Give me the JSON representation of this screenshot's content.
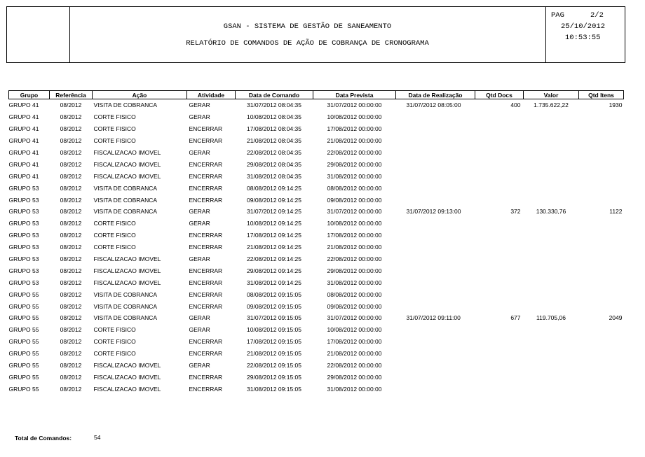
{
  "header": {
    "system_title": "GSAN - SISTEMA DE GESTÃO DE SANEAMENTO",
    "report_title": "RELATÓRIO DE COMANDOS DE AÇÃO DE COBRANÇA DE CRONOGRAMA",
    "page_label": "PAG",
    "page_value": "2/2",
    "date": "25/10/2012",
    "time": "10:53:55"
  },
  "table": {
    "columns": [
      "Grupo",
      "Referência",
      "Ação",
      "Atividade",
      "Data de Comando",
      "Data Prevista",
      "Data de Realização",
      "Qtd Docs",
      "Valor",
      "Qtd Itens"
    ],
    "rows": [
      [
        "GRUPO 41",
        "08/2012",
        "VISITA DE COBRANCA",
        "GERAR",
        "31/07/2012 08:04:35",
        "31/07/2012 00:00:00",
        "31/07/2012 08:05:00",
        "400",
        "1.735.622,22",
        "1930"
      ],
      [
        "GRUPO 41",
        "08/2012",
        "CORTE FISICO",
        "GERAR",
        "10/08/2012 08:04:35",
        "10/08/2012 00:00:00",
        "",
        "",
        "",
        ""
      ],
      [
        "GRUPO 41",
        "08/2012",
        "CORTE FISICO",
        "ENCERRAR",
        "17/08/2012 08:04:35",
        "17/08/2012 00:00:00",
        "",
        "",
        "",
        ""
      ],
      [
        "GRUPO 41",
        "08/2012",
        "CORTE FISICO",
        "ENCERRAR",
        "21/08/2012 08:04:35",
        "21/08/2012 00:00:00",
        "",
        "",
        "",
        ""
      ],
      [
        "GRUPO 41",
        "08/2012",
        "FISCALIZACAO IMOVEL",
        "GERAR",
        "22/08/2012 08:04:35",
        "22/08/2012 00:00:00",
        "",
        "",
        "",
        ""
      ],
      [
        "GRUPO 41",
        "08/2012",
        "FISCALIZACAO IMOVEL",
        "ENCERRAR",
        "29/08/2012 08:04:35",
        "29/08/2012 00:00:00",
        "",
        "",
        "",
        ""
      ],
      [
        "GRUPO 41",
        "08/2012",
        "FISCALIZACAO IMOVEL",
        "ENCERRAR",
        "31/08/2012 08:04:35",
        "31/08/2012 00:00:00",
        "",
        "",
        "",
        ""
      ],
      [
        "GRUPO 53",
        "08/2012",
        "VISITA DE COBRANCA",
        "ENCERRAR",
        "08/08/2012 09:14:25",
        "08/08/2012 00:00:00",
        "",
        "",
        "",
        ""
      ],
      [
        "GRUPO 53",
        "08/2012",
        "VISITA DE COBRANCA",
        "ENCERRAR",
        "09/08/2012 09:14:25",
        "09/08/2012 00:00:00",
        "",
        "",
        "",
        ""
      ],
      [
        "GRUPO 53",
        "08/2012",
        "VISITA DE COBRANCA",
        "GERAR",
        "31/07/2012 09:14:25",
        "31/07/2012 00:00:00",
        "31/07/2012 09:13:00",
        "372",
        "130.330,76",
        "1122"
      ],
      [
        "GRUPO 53",
        "08/2012",
        "CORTE FISICO",
        "GERAR",
        "10/08/2012 09:14:25",
        "10/08/2012 00:00:00",
        "",
        "",
        "",
        ""
      ],
      [
        "GRUPO 53",
        "08/2012",
        "CORTE FISICO",
        "ENCERRAR",
        "17/08/2012 09:14:25",
        "17/08/2012 00:00:00",
        "",
        "",
        "",
        ""
      ],
      [
        "GRUPO 53",
        "08/2012",
        "CORTE FISICO",
        "ENCERRAR",
        "21/08/2012 09:14:25",
        "21/08/2012 00:00:00",
        "",
        "",
        "",
        ""
      ],
      [
        "GRUPO 53",
        "08/2012",
        "FISCALIZACAO IMOVEL",
        "GERAR",
        "22/08/2012 09:14:25",
        "22/08/2012 00:00:00",
        "",
        "",
        "",
        ""
      ],
      [
        "GRUPO 53",
        "08/2012",
        "FISCALIZACAO IMOVEL",
        "ENCERRAR",
        "29/08/2012 09:14:25",
        "29/08/2012 00:00:00",
        "",
        "",
        "",
        ""
      ],
      [
        "GRUPO 53",
        "08/2012",
        "FISCALIZACAO IMOVEL",
        "ENCERRAR",
        "31/08/2012 09:14:25",
        "31/08/2012 00:00:00",
        "",
        "",
        "",
        ""
      ],
      [
        "GRUPO 55",
        "08/2012",
        "VISITA DE COBRANCA",
        "ENCERRAR",
        "08/08/2012 09:15:05",
        "08/08/2012 00:00:00",
        "",
        "",
        "",
        ""
      ],
      [
        "GRUPO 55",
        "08/2012",
        "VISITA DE COBRANCA",
        "ENCERRAR",
        "09/08/2012 09:15:05",
        "09/08/2012 00:00:00",
        "",
        "",
        "",
        ""
      ],
      [
        "GRUPO 55",
        "08/2012",
        "VISITA DE COBRANCA",
        "GERAR",
        "31/07/2012 09:15:05",
        "31/07/2012 00:00:00",
        "31/07/2012 09:11:00",
        "677",
        "119.705,06",
        "2049"
      ],
      [
        "GRUPO 55",
        "08/2012",
        "CORTE FISICO",
        "GERAR",
        "10/08/2012 09:15:05",
        "10/08/2012 00:00:00",
        "",
        "",
        "",
        ""
      ],
      [
        "GRUPO 55",
        "08/2012",
        "CORTE FISICO",
        "ENCERRAR",
        "17/08/2012 09:15:05",
        "17/08/2012 00:00:00",
        "",
        "",
        "",
        ""
      ],
      [
        "GRUPO 55",
        "08/2012",
        "CORTE FISICO",
        "ENCERRAR",
        "21/08/2012 09:15:05",
        "21/08/2012 00:00:00",
        "",
        "",
        "",
        ""
      ],
      [
        "GRUPO 55",
        "08/2012",
        "FISCALIZACAO IMOVEL",
        "GERAR",
        "22/08/2012 09:15:05",
        "22/08/2012 00:00:00",
        "",
        "",
        "",
        ""
      ],
      [
        "GRUPO 55",
        "08/2012",
        "FISCALIZACAO IMOVEL",
        "ENCERRAR",
        "29/08/2012 09:15:05",
        "29/08/2012 00:00:00",
        "",
        "",
        "",
        ""
      ],
      [
        "GRUPO 55",
        "08/2012",
        "FISCALIZACAO IMOVEL",
        "ENCERRAR",
        "31/08/2012 09:15:05",
        "31/08/2012 00:00:00",
        "",
        "",
        "",
        ""
      ]
    ]
  },
  "footer": {
    "total_label": "Total de Comandos:",
    "total_value": "54"
  }
}
